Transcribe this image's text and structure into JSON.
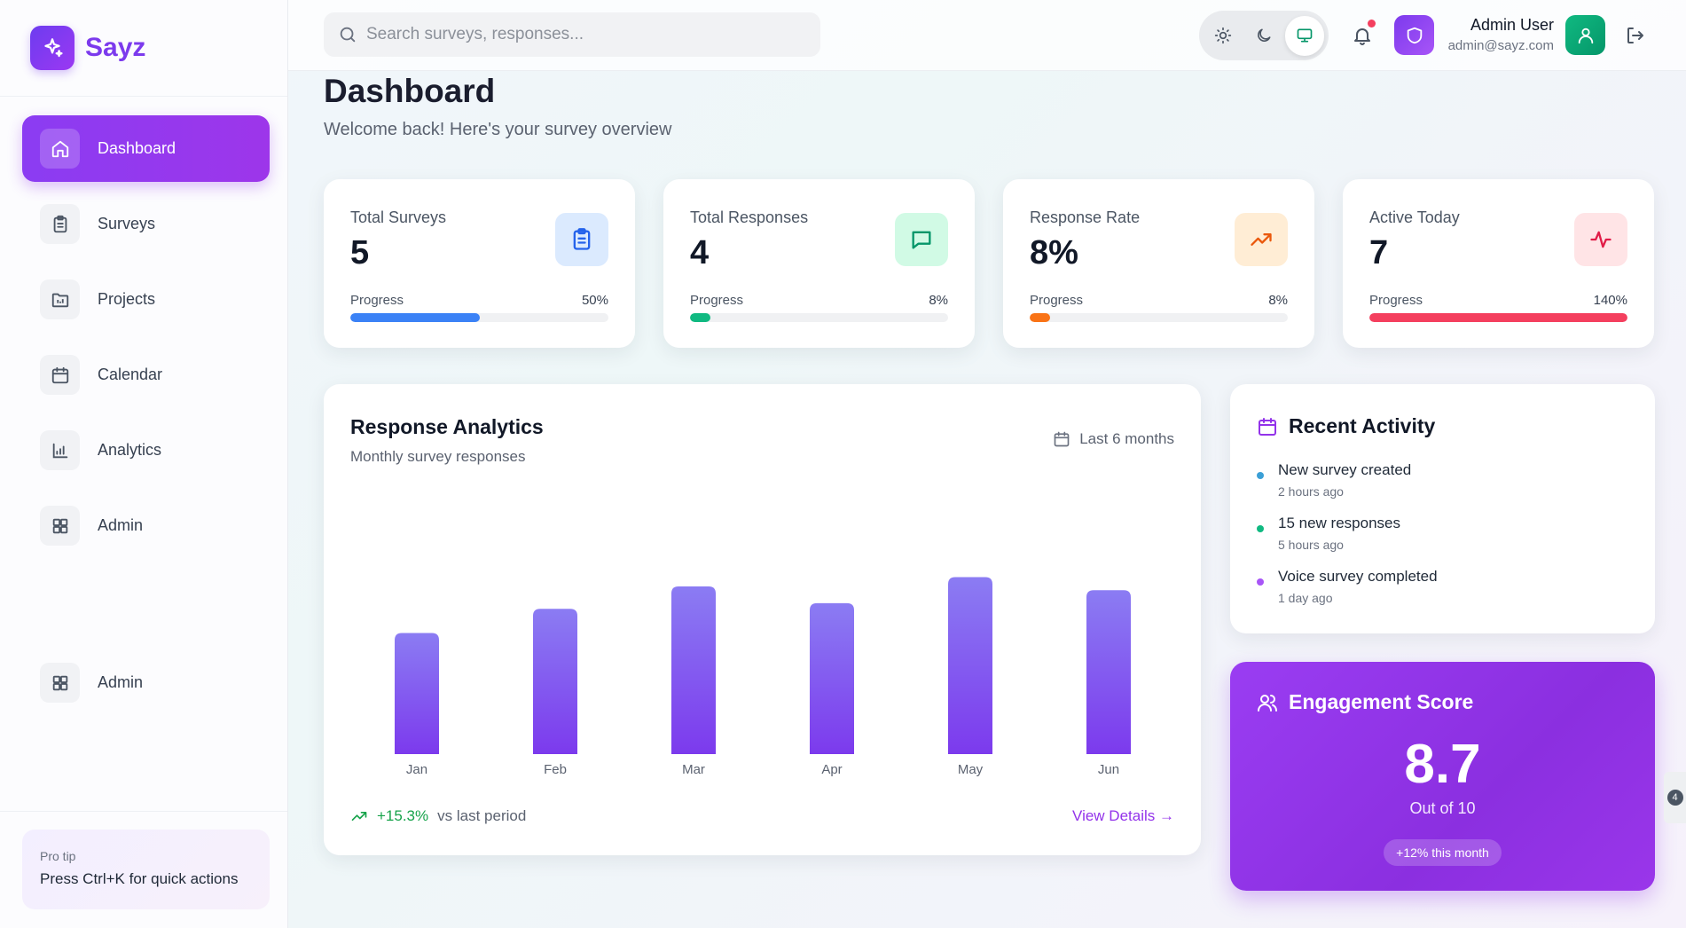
{
  "brand": {
    "name": "Sayz"
  },
  "sidebar": {
    "items": [
      {
        "label": "Dashboard",
        "icon": "home-icon",
        "active": true
      },
      {
        "label": "Surveys",
        "icon": "clipboard-icon"
      },
      {
        "label": "Projects",
        "icon": "folder-icon"
      },
      {
        "label": "Calendar",
        "icon": "calendar-icon"
      },
      {
        "label": "Analytics",
        "icon": "bar-chart-icon"
      },
      {
        "label": "Admin",
        "icon": "grid-icon"
      },
      {
        "label": "Admin",
        "icon": "grid-icon"
      }
    ],
    "protip": {
      "title": "Pro tip",
      "text": "Press Ctrl+K for quick actions"
    }
  },
  "header": {
    "search_placeholder": "Search surveys, responses...",
    "theme_options": [
      "light",
      "dark",
      "system"
    ],
    "theme_selected": "system",
    "notifications_unread": true,
    "user": {
      "name": "Admin User",
      "email": "admin@sayz.com"
    }
  },
  "page": {
    "title": "Dashboard",
    "subtitle": "Welcome back! Here's your survey overview"
  },
  "stats": [
    {
      "label": "Total Surveys",
      "value": "5",
      "progress_label": "Progress",
      "progress_text": "50%",
      "progress": 50,
      "color": "#3b82f6",
      "icon": "clipboard-icon"
    },
    {
      "label": "Total Responses",
      "value": "4",
      "progress_label": "Progress",
      "progress_text": "8%",
      "progress": 8,
      "color": "#10b981",
      "icon": "message-icon"
    },
    {
      "label": "Response Rate",
      "value": "8%",
      "progress_label": "Progress",
      "progress_text": "8%",
      "progress": 8,
      "color": "#f97316",
      "icon": "trending-up-icon"
    },
    {
      "label": "Active Today",
      "value": "7",
      "progress_label": "Progress",
      "progress_text": "140%",
      "progress": 100,
      "color": "#f43f5e",
      "icon": "activity-icon"
    }
  ],
  "analytics": {
    "title": "Response Analytics",
    "subtitle": "Monthly survey responses",
    "range": "Last 6 months",
    "trend_value": "+15.3%",
    "trend_text": "vs last period",
    "details_link": "View Details →"
  },
  "chart_data": {
    "type": "bar",
    "categories": [
      "Jan",
      "Feb",
      "Mar",
      "Apr",
      "May",
      "Jun"
    ],
    "values": [
      65,
      78,
      90,
      81,
      95,
      88
    ],
    "ylim": [
      0,
      100
    ],
    "grid": false,
    "color": "#7c3aed"
  },
  "activity": {
    "title": "Recent Activity",
    "items": [
      {
        "text": "New survey created",
        "time": "2 hours ago",
        "color": "#3b9fd6"
      },
      {
        "text": "15 new responses",
        "time": "5 hours ago",
        "color": "#10b981"
      },
      {
        "text": "Voice survey completed",
        "time": "1 day ago",
        "color": "#a855f7"
      }
    ]
  },
  "engagement": {
    "title": "Engagement Score",
    "score": "8.7",
    "out_of": "Out of 10",
    "badge": "+12% this month"
  },
  "edge_badge": "4"
}
